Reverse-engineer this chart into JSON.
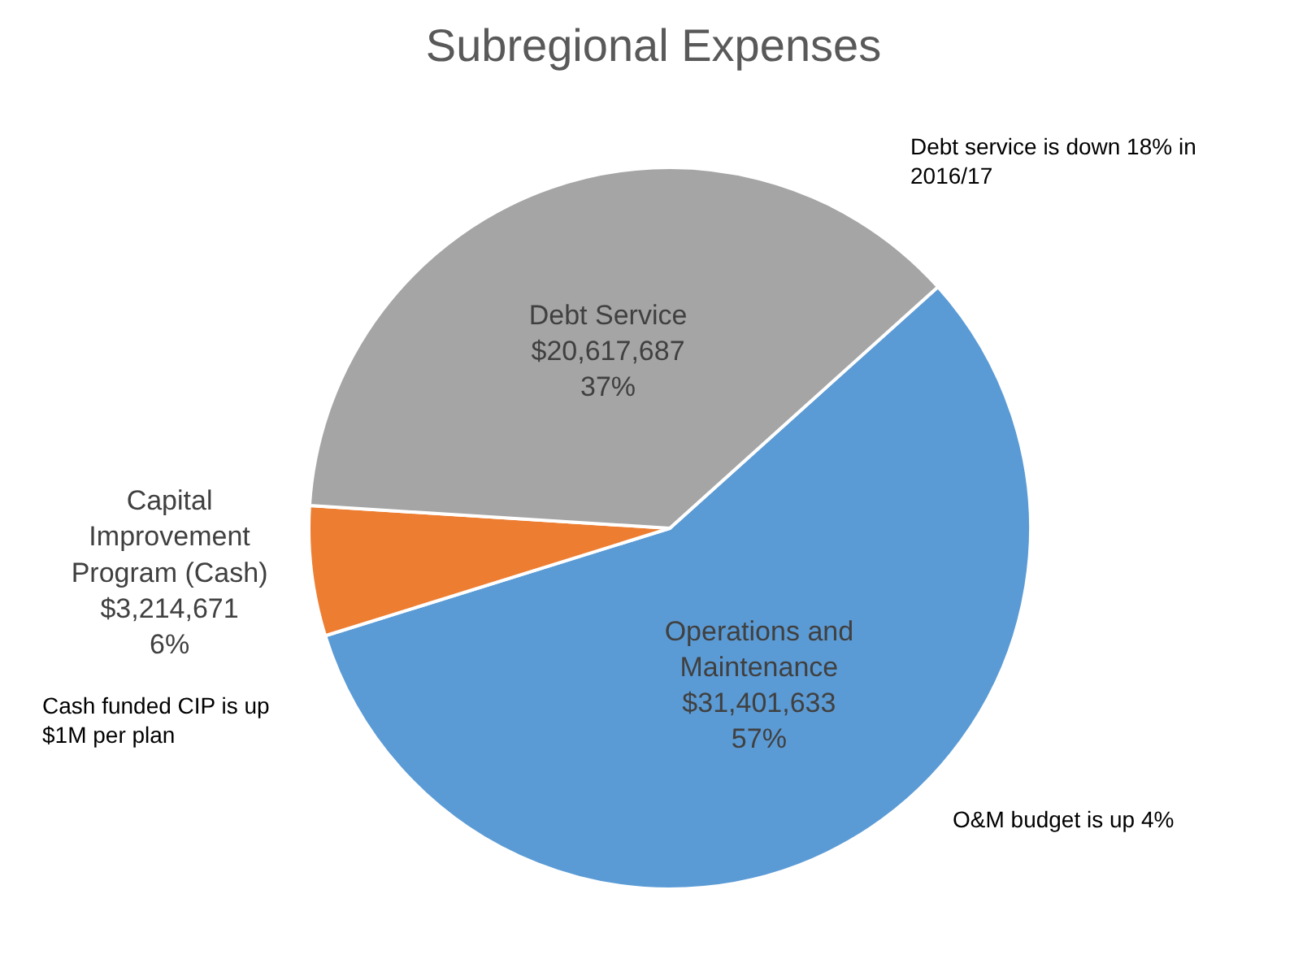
{
  "chart_data": {
    "type": "pie",
    "title": "Subregional Expenses",
    "categories": [
      "Operations and Maintenance",
      "Capital Improvement Program (Cash)",
      "Debt Service"
    ],
    "values": [
      31401633,
      3214671,
      20617687
    ],
    "colors": [
      "#5b9bd5",
      "#ed7d31",
      "#a5a5a5"
    ],
    "value_labels": [
      "$31,401,633\n57%",
      "$3,214,671\n6%",
      "$20,617,687\n37%"
    ],
    "legend": false,
    "annotations": [
      "Debt service is down 18% in 2016/17",
      "Cash funded CIP is up $1M per plan",
      "O&M budget is up 4%"
    ]
  }
}
